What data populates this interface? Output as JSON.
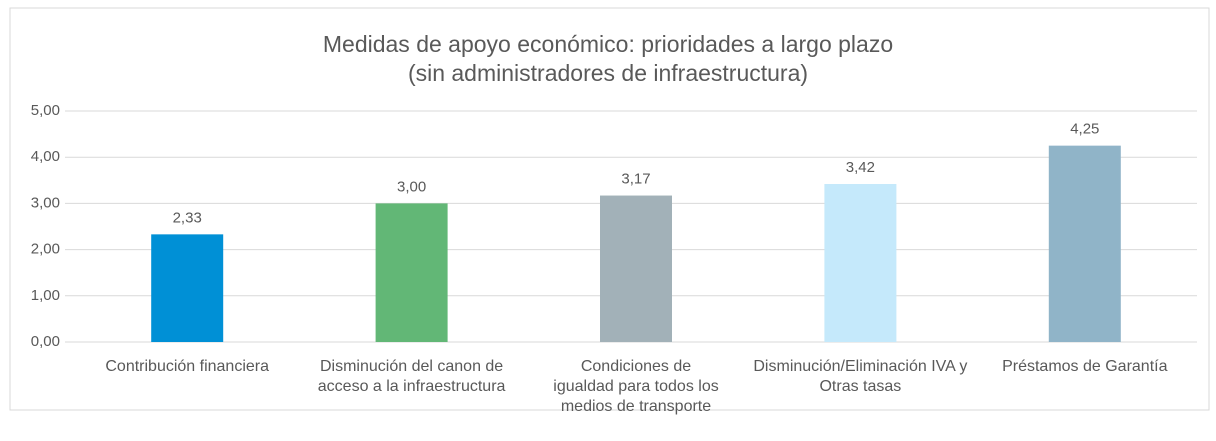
{
  "chart_data": {
    "type": "bar",
    "title": [
      "Medidas de apoyo económico: prioridades a largo plazo",
      "(sin administradores de infraestructura)"
    ],
    "categories": [
      "Contribución financiera",
      "Disminución del canon de acceso a la infraestructura",
      "Condiciones de igualdad para todos los medios de transporte",
      "Disminución/Eliminación IVA y Otras tasas",
      "Préstamos de Garantía"
    ],
    "values": [
      2.33,
      3.0,
      3.17,
      3.42,
      4.25
    ],
    "value_labels": [
      "2,33",
      "3,00",
      "3,17",
      "3,42",
      "4,25"
    ],
    "colors": [
      "#0090d6",
      "#62b776",
      "#a2b1b8",
      "#c5e9fb",
      "#90b4c8"
    ],
    "ylim": [
      0,
      5
    ],
    "yticks": [
      {
        "value": 0,
        "label": "0,00"
      },
      {
        "value": 1,
        "label": "1,00"
      },
      {
        "value": 2,
        "label": "2,00"
      },
      {
        "value": 3,
        "label": "3,00"
      },
      {
        "value": 4,
        "label": "4,00"
      },
      {
        "value": 5,
        "label": "5,00"
      }
    ],
    "grid": true
  }
}
